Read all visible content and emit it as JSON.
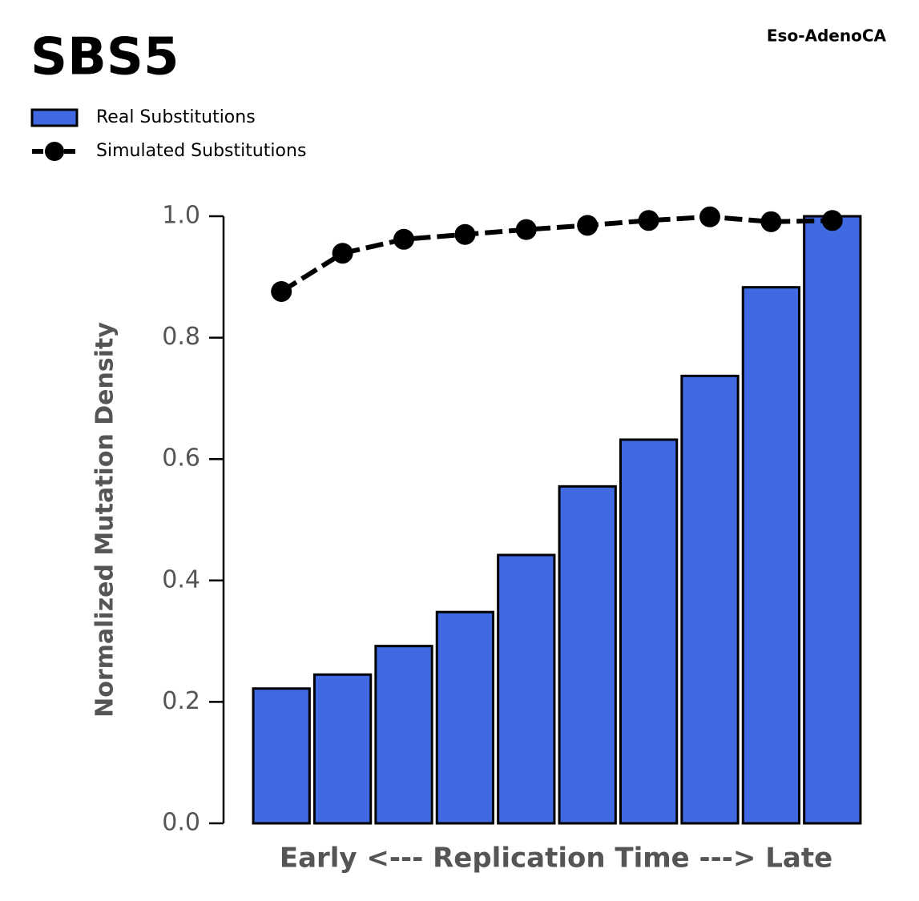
{
  "chart_data": {
    "type": "bar",
    "title": "SBS5",
    "subtitle": "Eso-AdenoCA",
    "x_label": "Early <--- Replication Time ---> Late",
    "y_label": "Normalized Mutation Density",
    "categories": [
      null,
      null,
      null,
      null,
      null,
      null,
      null,
      null,
      null,
      null
    ],
    "series": [
      {
        "name": "Real Substitutions",
        "type": "bar",
        "color": "#4169e1",
        "values": [
          0.222,
          0.245,
          0.292,
          0.348,
          0.442,
          0.555,
          0.632,
          0.737,
          0.883,
          1.0
        ]
      },
      {
        "name": "Simulated Substitutions",
        "type": "line",
        "color": "#000000",
        "values": [
          0.876,
          0.939,
          0.962,
          0.97,
          0.978,
          0.985,
          0.993,
          0.999,
          0.991,
          0.993
        ]
      }
    ],
    "ylim": [
      0,
      1
    ],
    "yticks": [
      {
        "value": 0,
        "label": "0.0"
      },
      0.2,
      0.4,
      0.6,
      0.8,
      {
        "value": 1,
        "label": "1.0"
      }
    ],
    "legend": "top-left",
    "grid": false
  }
}
